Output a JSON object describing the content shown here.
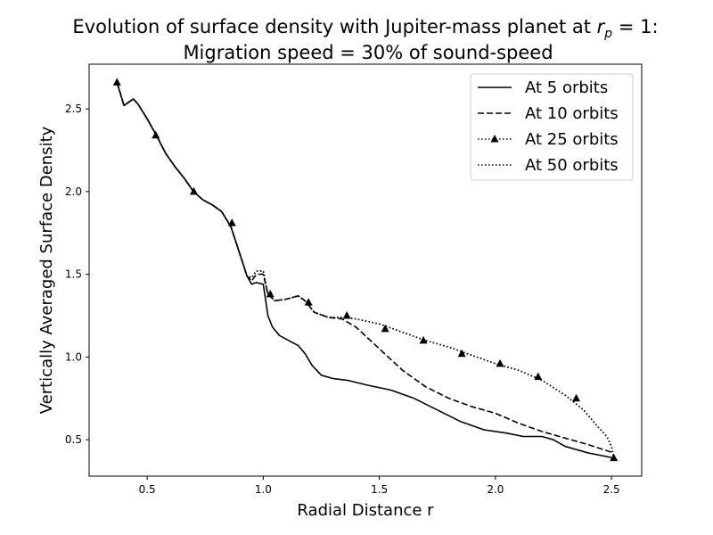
{
  "chart_data": {
    "type": "line",
    "title_line1": "Evolution of surface density with Jupiter-mass planet at ",
    "title_math_base": "r",
    "title_math_sub": "p",
    "title_math_rest": " = 1:",
    "title_line2": "Migration speed = 30% of sound-speed",
    "xlabel": "Radial Distance r",
    "ylabel": "Vertically Averaged Surface Density",
    "xlim": [
      0.25,
      2.63
    ],
    "ylim": [
      0.28,
      2.77
    ],
    "xticks": [
      0.5,
      1.0,
      1.5,
      2.0,
      2.5
    ],
    "xtick_labels": [
      "0.5",
      "1.0",
      "1.5",
      "2.0",
      "2.5"
    ],
    "yticks": [
      0.5,
      1.0,
      1.5,
      2.0,
      2.5
    ],
    "ytick_labels": [
      "0.5",
      "1.0",
      "1.5",
      "2.0",
      "2.5"
    ],
    "legend_position": "top-right",
    "series": [
      {
        "name": "At 5 orbits",
        "style": "solid",
        "marker": "none",
        "x": [
          0.37,
          0.4,
          0.42,
          0.44,
          0.46,
          0.5,
          0.54,
          0.58,
          0.62,
          0.66,
          0.7,
          0.74,
          0.78,
          0.82,
          0.86,
          0.9,
          0.93,
          0.95,
          0.97,
          1.0,
          1.02,
          1.04,
          1.07,
          1.11,
          1.15,
          1.18,
          1.21,
          1.25,
          1.3,
          1.36,
          1.45,
          1.55,
          1.65,
          1.75,
          1.85,
          1.95,
          2.05,
          2.12,
          2.2,
          2.25,
          2.3,
          2.4,
          2.51
        ],
        "y": [
          2.66,
          2.52,
          2.54,
          2.56,
          2.53,
          2.44,
          2.34,
          2.23,
          2.15,
          2.08,
          2.0,
          1.95,
          1.92,
          1.88,
          1.79,
          1.62,
          1.49,
          1.44,
          1.45,
          1.44,
          1.25,
          1.18,
          1.13,
          1.1,
          1.07,
          1.02,
          0.95,
          0.89,
          0.87,
          0.86,
          0.83,
          0.8,
          0.75,
          0.68,
          0.61,
          0.56,
          0.54,
          0.52,
          0.52,
          0.5,
          0.46,
          0.42,
          0.39
        ]
      },
      {
        "name": "At 10 orbits",
        "style": "dashed",
        "marker": "none",
        "x": [
          0.37,
          0.4,
          0.42,
          0.44,
          0.46,
          0.5,
          0.54,
          0.58,
          0.62,
          0.66,
          0.7,
          0.74,
          0.78,
          0.82,
          0.86,
          0.9,
          0.93,
          0.95,
          0.97,
          1.0,
          1.02,
          1.05,
          1.1,
          1.15,
          1.18,
          1.22,
          1.28,
          1.34,
          1.4,
          1.5,
          1.6,
          1.7,
          1.8,
          1.9,
          2.0,
          2.1,
          2.2,
          2.3,
          2.4,
          2.51
        ],
        "y": [
          2.66,
          2.52,
          2.54,
          2.56,
          2.53,
          2.44,
          2.34,
          2.23,
          2.15,
          2.08,
          2.0,
          1.95,
          1.92,
          1.88,
          1.79,
          1.62,
          1.49,
          1.46,
          1.5,
          1.5,
          1.38,
          1.34,
          1.35,
          1.37,
          1.34,
          1.27,
          1.24,
          1.23,
          1.18,
          1.05,
          0.92,
          0.82,
          0.75,
          0.7,
          0.66,
          0.6,
          0.55,
          0.51,
          0.47,
          0.42
        ]
      },
      {
        "name": "At 25 orbits",
        "style": "dotted",
        "marker": "triangle",
        "x": [
          0.37,
          0.4,
          0.42,
          0.44,
          0.46,
          0.5,
          0.54,
          0.58,
          0.62,
          0.66,
          0.7,
          0.74,
          0.78,
          0.82,
          0.86,
          0.9,
          0.93,
          0.95,
          0.97,
          1.0,
          1.02,
          1.05,
          1.1,
          1.15,
          1.18,
          1.22,
          1.28,
          1.34,
          1.4,
          1.5,
          1.6,
          1.7,
          1.8,
          1.9,
          2.0,
          2.1,
          2.2,
          2.3,
          2.38,
          2.44,
          2.48,
          2.5,
          2.51
        ],
        "y": [
          2.66,
          2.52,
          2.54,
          2.56,
          2.53,
          2.44,
          2.34,
          2.23,
          2.15,
          2.08,
          2.0,
          1.95,
          1.92,
          1.88,
          1.79,
          1.62,
          1.49,
          1.48,
          1.52,
          1.52,
          1.38,
          1.34,
          1.35,
          1.37,
          1.34,
          1.27,
          1.24,
          1.24,
          1.23,
          1.2,
          1.15,
          1.1,
          1.06,
          1.01,
          0.96,
          0.92,
          0.86,
          0.77,
          0.68,
          0.58,
          0.52,
          0.46,
          0.39
        ],
        "marker_x": [
          0.37,
          0.537,
          0.701,
          0.865,
          1.03,
          1.195,
          1.36,
          1.525,
          1.69,
          1.855,
          2.02,
          2.184,
          2.348,
          2.51
        ],
        "marker_y": [
          2.66,
          2.34,
          2.0,
          1.81,
          1.38,
          1.33,
          1.25,
          1.17,
          1.1,
          1.02,
          0.96,
          0.88,
          0.75,
          0.39
        ]
      },
      {
        "name": "At 50 orbits",
        "style": "dotted",
        "marker": "none",
        "x": [
          0.37,
          0.4,
          0.42,
          0.44,
          0.46,
          0.5,
          0.54,
          0.58,
          0.62,
          0.66,
          0.7,
          0.74,
          0.78,
          0.82,
          0.86,
          0.9,
          0.93,
          0.95,
          0.97,
          1.0,
          1.02,
          1.05,
          1.1,
          1.15,
          1.18,
          1.22,
          1.28,
          1.34,
          1.4,
          1.5,
          1.6,
          1.7,
          1.8,
          1.9,
          2.0,
          2.1,
          2.2,
          2.3,
          2.38,
          2.44,
          2.48,
          2.5,
          2.51
        ],
        "y": [
          2.66,
          2.52,
          2.54,
          2.56,
          2.53,
          2.44,
          2.34,
          2.23,
          2.15,
          2.08,
          2.0,
          1.95,
          1.92,
          1.88,
          1.79,
          1.62,
          1.49,
          1.48,
          1.52,
          1.52,
          1.38,
          1.34,
          1.35,
          1.37,
          1.34,
          1.27,
          1.24,
          1.24,
          1.23,
          1.2,
          1.15,
          1.1,
          1.06,
          1.01,
          0.96,
          0.92,
          0.86,
          0.77,
          0.68,
          0.58,
          0.52,
          0.46,
          0.39
        ]
      }
    ]
  }
}
